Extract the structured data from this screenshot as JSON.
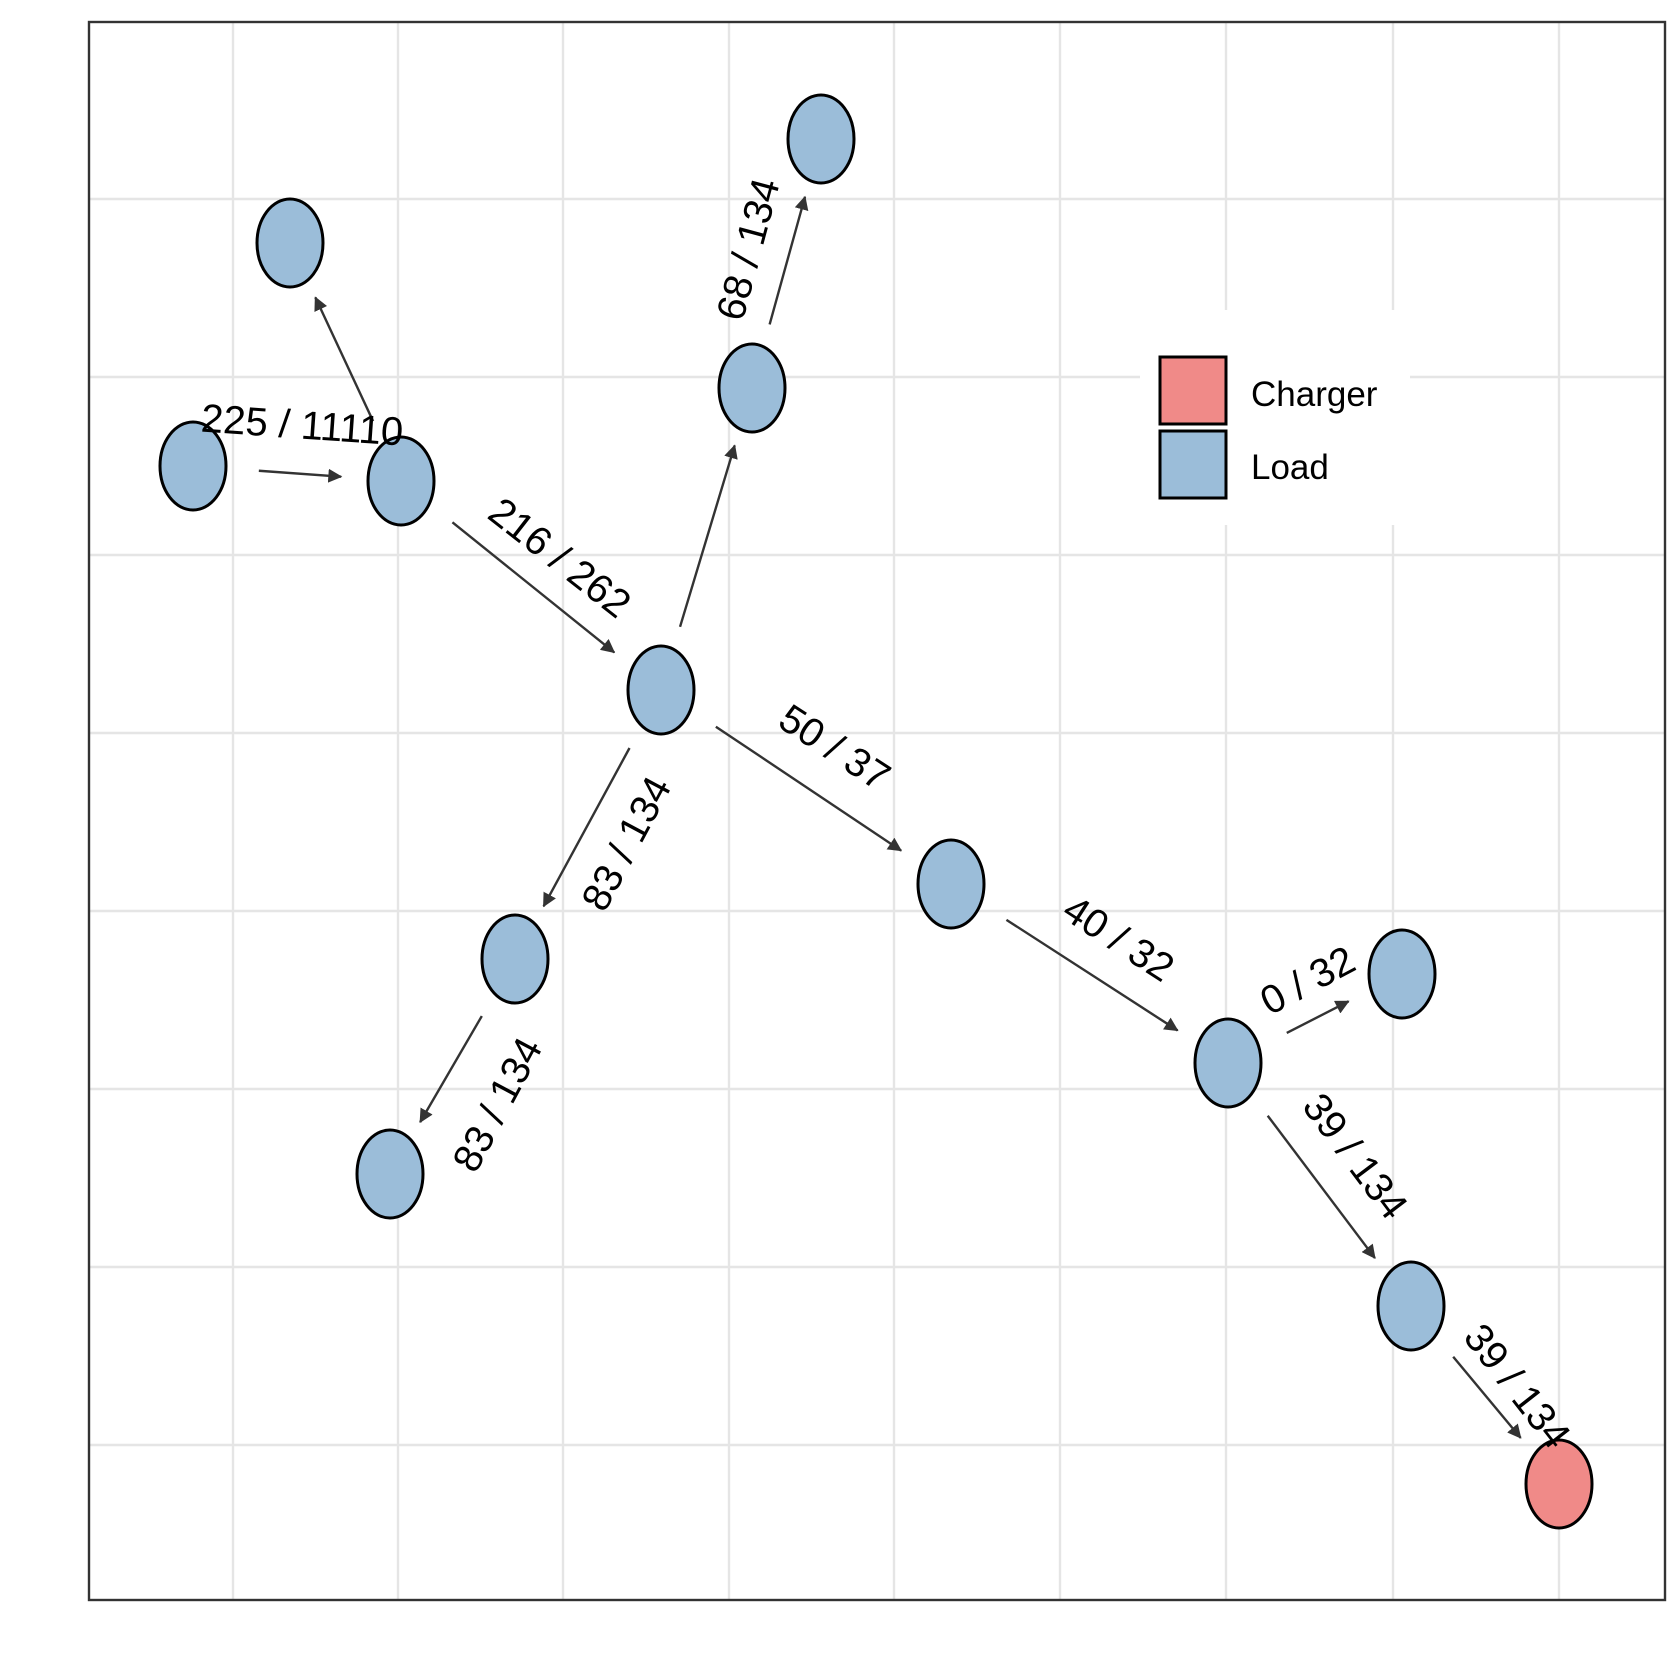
{
  "colors": {
    "charger": "#F08A88",
    "load": "#9BBDD9",
    "grid": "#E5E5E5",
    "panel_border": "#333333",
    "edge": "#333333"
  },
  "legend": {
    "items": [
      {
        "label": "Charger",
        "type": "charger"
      },
      {
        "label": "Load",
        "type": "load"
      }
    ]
  },
  "network": {
    "nodes": [
      {
        "id": "n1",
        "type": "load"
      },
      {
        "id": "n2",
        "type": "load"
      },
      {
        "id": "n3",
        "type": "load"
      },
      {
        "id": "n4",
        "type": "load"
      },
      {
        "id": "n5",
        "type": "load"
      },
      {
        "id": "n6",
        "type": "load"
      },
      {
        "id": "n7",
        "type": "load"
      },
      {
        "id": "n8",
        "type": "load"
      },
      {
        "id": "n9",
        "type": "load"
      },
      {
        "id": "n10",
        "type": "load"
      },
      {
        "id": "n11",
        "type": "load"
      },
      {
        "id": "n12",
        "type": "load"
      },
      {
        "id": "n13",
        "type": "load"
      },
      {
        "id": "n14",
        "type": "charger"
      }
    ],
    "edges": [
      {
        "from": "n3",
        "to": "n4",
        "label": "225 / 11110"
      },
      {
        "from": "n4",
        "to": "n2",
        "label": ""
      },
      {
        "from": "n4",
        "to": "n7",
        "label": "216 / 262"
      },
      {
        "from": "n7",
        "to": "n5",
        "label": ""
      },
      {
        "from": "n5",
        "to": "n1",
        "label": "68 / 134"
      },
      {
        "from": "n7",
        "to": "n9",
        "label": "83 / 134"
      },
      {
        "from": "n9",
        "to": "n12",
        "label": "83 / 134"
      },
      {
        "from": "n7",
        "to": "n8",
        "label": "50 / 37"
      },
      {
        "from": "n8",
        "to": "n11",
        "label": "40 / 32"
      },
      {
        "from": "n11",
        "to": "n10",
        "label": "0 / 32"
      },
      {
        "from": "n11",
        "to": "n13",
        "label": "39 / 134"
      },
      {
        "from": "n13",
        "to": "n14",
        "label": "39 / 134"
      }
    ]
  }
}
